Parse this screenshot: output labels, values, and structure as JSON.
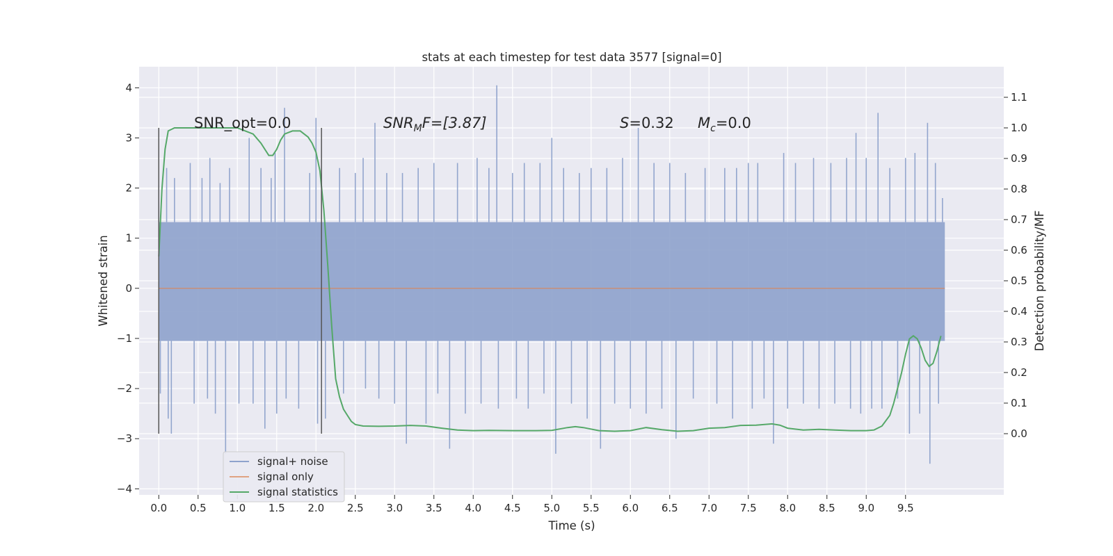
{
  "chart_data": {
    "type": "line",
    "title": "stats at each timestep for test data 3577 [signal=0]",
    "xlabel": "Time (s)",
    "ylabel_left": "Whitened strain",
    "ylabel_right": "Detection probability/MF",
    "xlim": [
      -0.25,
      10.75
    ],
    "ylim_left": [
      -4.12,
      4.42
    ],
    "ylim_right": [
      -0.2,
      1.2
    ],
    "x_ticks": [
      0.0,
      0.5,
      1.0,
      1.5,
      2.0,
      2.5,
      3.0,
      3.5,
      4.0,
      4.5,
      5.0,
      5.5,
      6.0,
      6.5,
      7.0,
      7.5,
      8.0,
      8.5,
      9.0,
      9.5
    ],
    "x_tick_labels": [
      "0.0",
      "0.5",
      "1.0",
      "1.5",
      "2.0",
      "2.5",
      "3.0",
      "3.5",
      "4.0",
      "4.5",
      "5.0",
      "5.5",
      "6.0",
      "6.5",
      "7.0",
      "7.5",
      "8.0",
      "8.5",
      "9.0",
      "9.5"
    ],
    "y_ticks_left": [
      4,
      3,
      2,
      1,
      0,
      -1,
      -2,
      -3,
      -4
    ],
    "y_tick_labels_left": [
      "4",
      "3",
      "2",
      "1",
      "0",
      "−1",
      "−2",
      "−3",
      "−4"
    ],
    "y_ticks_right": [
      1.1,
      1.0,
      0.9,
      0.8,
      0.7,
      0.6,
      0.5,
      0.4,
      0.3,
      0.2,
      0.1,
      0.0
    ],
    "y_tick_labels_right": [
      "1.1",
      "1.0",
      "0.9",
      "0.8",
      "0.7",
      "0.6",
      "0.5",
      "0.4",
      "0.3",
      "0.2",
      "0.1",
      "0.0"
    ],
    "grid": true,
    "legend_position": "lower-left",
    "annotations": {
      "snr_opt": "SNR_opt=0.0",
      "snr_mf_base": "SNR",
      "snr_mf_sub": "M",
      "snr_mf_rest": "F=[3.87]",
      "s_italic": "S",
      "s_value": "=0.32",
      "mc_base": "M",
      "mc_sub": "c",
      "mc_value": "=0.0"
    },
    "vertical_markers": [
      {
        "x": 0.0,
        "y0": -2.9,
        "y1": 3.2
      },
      {
        "x": 2.07,
        "y0": -2.9,
        "y1": 3.2
      }
    ],
    "series": [
      {
        "name": "signal+ noise",
        "axis": "left",
        "color": "#8ea2cc",
        "x_range": [
          0.0,
          10.0
        ],
        "band_lower": -1.05,
        "band_upper": 1.32,
        "spikes": [
          [
            0.0,
            2.05
          ],
          [
            0.02,
            -2.1
          ],
          [
            0.1,
            2.4
          ],
          [
            0.12,
            -2.6
          ],
          [
            0.16,
            -2.9
          ],
          [
            0.2,
            2.2
          ],
          [
            0.4,
            2.5
          ],
          [
            0.45,
            -2.3
          ],
          [
            0.55,
            2.2
          ],
          [
            0.62,
            -2.2
          ],
          [
            0.65,
            2.6
          ],
          [
            0.72,
            -2.5
          ],
          [
            0.78,
            2.1
          ],
          [
            0.85,
            -3.3
          ],
          [
            0.9,
            2.4
          ],
          [
            1.02,
            -2.3
          ],
          [
            1.15,
            3.0
          ],
          [
            1.2,
            -2.3
          ],
          [
            1.3,
            2.4
          ],
          [
            1.35,
            -2.8
          ],
          [
            1.43,
            2.2
          ],
          [
            1.48,
            2.7
          ],
          [
            1.5,
            -2.5
          ],
          [
            1.6,
            3.6
          ],
          [
            1.62,
            -2.2
          ],
          [
            1.78,
            -2.4
          ],
          [
            1.92,
            2.3
          ],
          [
            2.0,
            3.4
          ],
          [
            2.02,
            -2.7
          ],
          [
            2.12,
            -2.6
          ],
          [
            2.3,
            2.4
          ],
          [
            2.35,
            -2.1
          ],
          [
            2.5,
            2.3
          ],
          [
            2.6,
            2.6
          ],
          [
            2.63,
            -2.0
          ],
          [
            2.75,
            3.3
          ],
          [
            2.8,
            -2.2
          ],
          [
            2.9,
            2.3
          ],
          [
            3.0,
            -2.3
          ],
          [
            3.1,
            2.3
          ],
          [
            3.15,
            -3.1
          ],
          [
            3.3,
            2.4
          ],
          [
            3.4,
            -2.7
          ],
          [
            3.5,
            2.5
          ],
          [
            3.55,
            -2.1
          ],
          [
            3.7,
            -3.2
          ],
          [
            3.8,
            2.5
          ],
          [
            3.9,
            -2.5
          ],
          [
            4.05,
            2.6
          ],
          [
            4.1,
            -2.3
          ],
          [
            4.2,
            2.4
          ],
          [
            4.3,
            4.05
          ],
          [
            4.32,
            -2.4
          ],
          [
            4.5,
            2.3
          ],
          [
            4.55,
            -2.2
          ],
          [
            4.65,
            2.5
          ],
          [
            4.7,
            -2.4
          ],
          [
            4.85,
            2.5
          ],
          [
            4.9,
            -2.1
          ],
          [
            5.0,
            3.0
          ],
          [
            5.05,
            -3.3
          ],
          [
            5.15,
            2.4
          ],
          [
            5.25,
            -2.3
          ],
          [
            5.35,
            2.3
          ],
          [
            5.45,
            -2.6
          ],
          [
            5.5,
            2.4
          ],
          [
            5.62,
            -3.2
          ],
          [
            5.7,
            2.4
          ],
          [
            5.8,
            -2.3
          ],
          [
            5.9,
            2.6
          ],
          [
            6.0,
            -2.4
          ],
          [
            6.1,
            3.2
          ],
          [
            6.2,
            -2.5
          ],
          [
            6.3,
            2.5
          ],
          [
            6.4,
            -2.4
          ],
          [
            6.5,
            2.5
          ],
          [
            6.58,
            -3.0
          ],
          [
            6.7,
            2.3
          ],
          [
            6.8,
            -2.2
          ],
          [
            6.95,
            2.4
          ],
          [
            7.1,
            -2.3
          ],
          [
            7.2,
            2.4
          ],
          [
            7.3,
            -2.6
          ],
          [
            7.35,
            2.4
          ],
          [
            7.5,
            2.5
          ],
          [
            7.55,
            -2.4
          ],
          [
            7.62,
            2.5
          ],
          [
            7.7,
            -2.2
          ],
          [
            7.82,
            -3.1
          ],
          [
            7.95,
            2.7
          ],
          [
            8.0,
            -2.4
          ],
          [
            8.1,
            2.5
          ],
          [
            8.2,
            -2.3
          ],
          [
            8.33,
            2.6
          ],
          [
            8.4,
            -2.4
          ],
          [
            8.55,
            2.5
          ],
          [
            8.6,
            -2.3
          ],
          [
            8.75,
            2.6
          ],
          [
            8.8,
            -2.4
          ],
          [
            8.87,
            3.1
          ],
          [
            8.93,
            -2.5
          ],
          [
            9.0,
            2.6
          ],
          [
            9.07,
            -2.4
          ],
          [
            9.15,
            3.5
          ],
          [
            9.2,
            -2.4
          ],
          [
            9.3,
            2.4
          ],
          [
            9.4,
            -2.2
          ],
          [
            9.5,
            2.6
          ],
          [
            9.55,
            -2.9
          ],
          [
            9.62,
            2.7
          ],
          [
            9.68,
            -2.5
          ],
          [
            9.78,
            3.3
          ],
          [
            9.81,
            -3.5
          ],
          [
            9.88,
            2.5
          ],
          [
            9.92,
            -2.3
          ],
          [
            9.97,
            1.8
          ]
        ]
      },
      {
        "name": "signal only",
        "axis": "left",
        "color": "#dd8452",
        "x": [
          0.0,
          10.0
        ],
        "y": [
          0.0,
          0.0
        ]
      },
      {
        "name": "signal statistics",
        "axis": "right",
        "color": "#55a868",
        "x": [
          0.0,
          0.04,
          0.08,
          0.12,
          0.2,
          0.3,
          0.5,
          0.8,
          1.0,
          1.1,
          1.2,
          1.3,
          1.4,
          1.45,
          1.5,
          1.55,
          1.6,
          1.7,
          1.8,
          1.9,
          1.95,
          2.0,
          2.05,
          2.1,
          2.15,
          2.2,
          2.25,
          2.3,
          2.35,
          2.4,
          2.45,
          2.5,
          2.6,
          2.8,
          3.0,
          3.2,
          3.4,
          3.6,
          3.8,
          4.0,
          4.2,
          4.5,
          4.8,
          5.0,
          5.2,
          5.3,
          5.4,
          5.6,
          5.8,
          6.0,
          6.2,
          6.4,
          6.6,
          6.8,
          7.0,
          7.2,
          7.4,
          7.6,
          7.8,
          7.9,
          8.0,
          8.2,
          8.4,
          8.6,
          8.8,
          9.0,
          9.1,
          9.2,
          9.3,
          9.35,
          9.4,
          9.45,
          9.5,
          9.55,
          9.6,
          9.65,
          9.7,
          9.75,
          9.8,
          9.85,
          9.9,
          9.95
        ],
        "y": [
          0.58,
          0.8,
          0.93,
          0.99,
          1.0,
          1.0,
          1.0,
          1.0,
          1.0,
          0.99,
          0.98,
          0.95,
          0.91,
          0.91,
          0.93,
          0.96,
          0.98,
          0.99,
          0.99,
          0.97,
          0.95,
          0.92,
          0.86,
          0.73,
          0.55,
          0.35,
          0.18,
          0.12,
          0.08,
          0.06,
          0.04,
          0.03,
          0.025,
          0.024,
          0.025,
          0.027,
          0.025,
          0.018,
          0.012,
          0.01,
          0.011,
          0.01,
          0.01,
          0.011,
          0.02,
          0.023,
          0.02,
          0.01,
          0.008,
          0.01,
          0.02,
          0.013,
          0.008,
          0.01,
          0.018,
          0.02,
          0.027,
          0.028,
          0.032,
          0.028,
          0.018,
          0.012,
          0.014,
          0.012,
          0.01,
          0.01,
          0.012,
          0.025,
          0.06,
          0.1,
          0.15,
          0.2,
          0.26,
          0.31,
          0.32,
          0.31,
          0.28,
          0.24,
          0.22,
          0.23,
          0.27,
          0.32
        ]
      }
    ]
  }
}
